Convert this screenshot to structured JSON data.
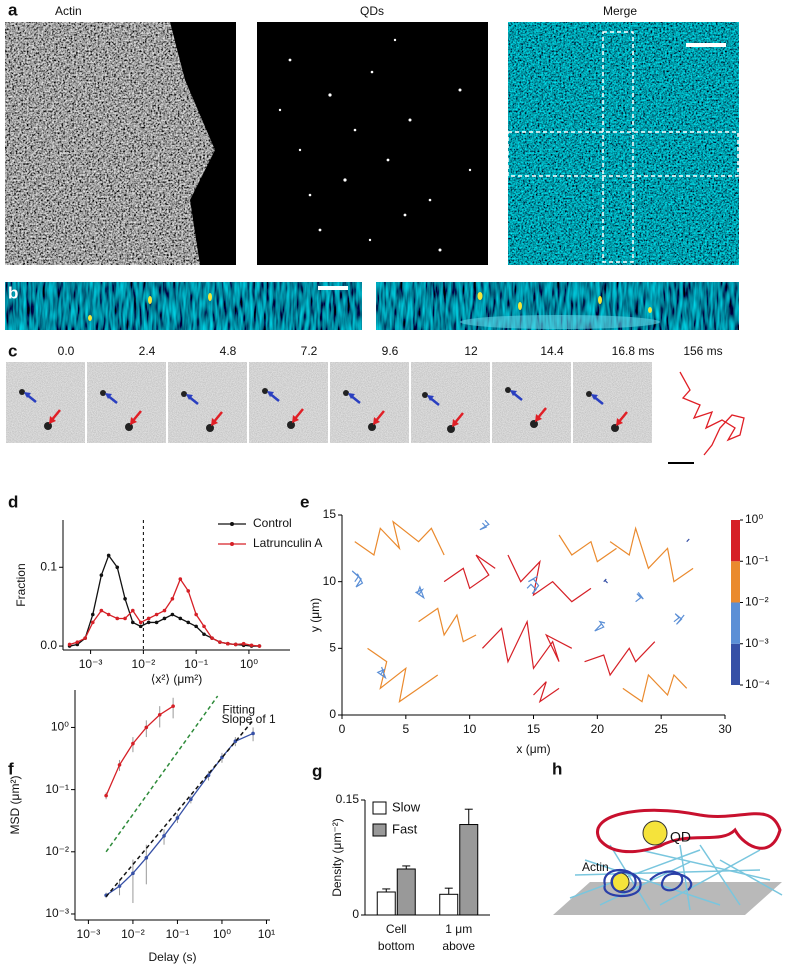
{
  "labels": [
    "a",
    "b",
    "c",
    "d",
    "e",
    "f",
    "g",
    "h"
  ],
  "panel_a": {
    "titles": [
      "Actin",
      "QDs",
      "Merge"
    ]
  },
  "panel_c": {
    "times": [
      "0.0",
      "2.4",
      "4.8",
      "7.2",
      "9.6",
      "12",
      "14.4",
      "16.8 ms"
    ],
    "track_time": "156 ms"
  },
  "panel_h": {
    "labels": [
      "QD",
      "Actin"
    ]
  },
  "chart_data": [
    {
      "type": "line",
      "xscale": "log",
      "xlabel": "⟨x²⟩ (μm²)",
      "ylabel": "Fraction",
      "xlim": [
        0.0003,
        6
      ],
      "ylim": [
        -0.005,
        0.16
      ],
      "xticks": [
        {
          "value": 0.001,
          "label": "10⁻³"
        },
        {
          "value": 0.01,
          "label": "10⁻²"
        },
        {
          "value": 0.1,
          "label": "10⁻¹"
        },
        {
          "value": 1,
          "label": "10⁰"
        }
      ],
      "yticks": [
        {
          "value": 0,
          "label": "0.0"
        },
        0.1
      ],
      "vline": 0.01,
      "legend": "upper right",
      "x": [
        0.0004,
        0.00056,
        0.00079,
        0.0011,
        0.0016,
        0.0022,
        0.0032,
        0.0045,
        0.0063,
        0.0089,
        0.0126,
        0.0178,
        0.0251,
        0.0355,
        0.0501,
        0.0708,
        0.1,
        0.141,
        0.2,
        0.282,
        0.398,
        0.562,
        0.794,
        1.12,
        1.58
      ],
      "series": [
        {
          "name": "Control",
          "color": "#111111",
          "markers": true,
          "values": [
            0,
            0.002,
            0.01,
            0.04,
            0.09,
            0.115,
            0.1,
            0.06,
            0.03,
            0.025,
            0.03,
            0.03,
            0.035,
            0.04,
            0.035,
            0.03,
            0.025,
            0.015,
            0.01,
            0.005,
            0.003,
            0.002,
            0.001,
            0,
            0
          ]
        },
        {
          "name": "Latrunculin A",
          "color": "#d62027",
          "markers": true,
          "values": [
            0.002,
            0.005,
            0.01,
            0.03,
            0.045,
            0.04,
            0.035,
            0.035,
            0.045,
            0.03,
            0.035,
            0.04,
            0.045,
            0.06,
            0.085,
            0.07,
            0.04,
            0.025,
            0.01,
            0.005,
            0.003,
            0.002,
            0.003,
            0.001,
            0
          ]
        }
      ]
    },
    {
      "type": "tracks",
      "xlabel": "x (μm)",
      "ylabel": "y (μm)",
      "xlim": [
        0,
        30
      ],
      "ylim": [
        0,
        15
      ],
      "xticks": [
        0,
        5,
        10,
        15,
        20,
        25,
        30
      ],
      "yticks": [
        0,
        5,
        10,
        15
      ],
      "colorbar": {
        "scale": "log",
        "lim": [
          0.0001,
          1
        ],
        "ticks": [
          {
            "value": 0.0001,
            "label": "10⁻⁴"
          },
          {
            "value": 0.001,
            "label": "10⁻³"
          },
          {
            "value": 0.01,
            "label": "10⁻²"
          },
          {
            "value": 0.1,
            "label": "10⁻¹"
          },
          {
            "value": 1,
            "label": "10⁰"
          }
        ],
        "colors": [
          "#3650a6",
          "#5b8fd6",
          "#ea8a2e",
          "#d62027"
        ]
      },
      "tracks": [
        {
          "color": "#d62027",
          "x": [
            11,
            12.5,
            13,
            14.5,
            15,
            16.5,
            17,
            16,
            18
          ],
          "y": [
            5,
            6.5,
            4,
            7,
            3.5,
            5.5,
            4,
            6,
            5
          ]
        },
        {
          "color": "#d62027",
          "x": [
            13,
            14,
            15.5,
            15,
            16.5,
            18,
            19.5
          ],
          "y": [
            12,
            10,
            11.5,
            9,
            10,
            8.5,
            9.5
          ]
        },
        {
          "color": "#d62027",
          "x": [
            8,
            9.5,
            10,
            11.5,
            10.5,
            12
          ],
          "y": [
            10,
            11,
            9.5,
            10.5,
            12,
            11
          ]
        },
        {
          "color": "#d62027",
          "x": [
            19,
            20.5,
            21,
            22.5,
            23,
            24.5
          ],
          "y": [
            4,
            4.5,
            3,
            5,
            4,
            5.5
          ]
        },
        {
          "color": "#d62027",
          "x": [
            15,
            16,
            15.5,
            17
          ],
          "y": [
            1.5,
            2.5,
            1,
            2
          ]
        },
        {
          "color": "#ea8a2e",
          "x": [
            1,
            2.5,
            3,
            4.5,
            4,
            6,
            7,
            8
          ],
          "y": [
            13,
            12,
            14,
            12.5,
            14.5,
            13,
            14,
            12
          ]
        },
        {
          "color": "#ea8a2e",
          "x": [
            2,
            3.5,
            3,
            5,
            4.5,
            6,
            7.5
          ],
          "y": [
            5,
            4,
            2,
            3.5,
            1,
            2,
            3
          ]
        },
        {
          "color": "#ea8a2e",
          "x": [
            6,
            7.5,
            8,
            9,
            9.5,
            10.5
          ],
          "y": [
            7,
            8,
            6,
            7.5,
            5.5,
            6
          ]
        },
        {
          "color": "#ea8a2e",
          "x": [
            21,
            22.5,
            23,
            24,
            25.5,
            26,
            27.5
          ],
          "y": [
            13,
            12,
            14,
            11,
            12.5,
            10,
            11
          ]
        },
        {
          "color": "#ea8a2e",
          "x": [
            22,
            23.5,
            24,
            25.5,
            26,
            27
          ],
          "y": [
            2,
            1,
            3,
            1.5,
            3,
            2
          ]
        },
        {
          "color": "#ea8a2e",
          "x": [
            17,
            18,
            19.5,
            20,
            21.5
          ],
          "y": [
            13.5,
            12,
            13,
            11.5,
            12.5
          ]
        },
        {
          "color": "#5b8fd6",
          "x": [
            1,
            1.3,
            0.8,
            1.5,
            1.1,
            1.6,
            1.2
          ],
          "y": [
            10,
            10.4,
            10.8,
            10.2,
            9.6,
            9.9,
            10.6
          ]
        },
        {
          "color": "#5b8fd6",
          "x": [
            14.5,
            14.8,
            15.2,
            14.9,
            15.4,
            15,
            14.6,
            15.3
          ],
          "y": [
            9.5,
            9.8,
            9.4,
            9.1,
            9.7,
            10.2,
            10,
            10.4
          ]
        },
        {
          "color": "#5b8fd6",
          "x": [
            26,
            26.4,
            26.1,
            26.6,
            26.2,
            26.8
          ],
          "y": [
            7,
            7.3,
            7.6,
            7.2,
            6.8,
            7.5
          ]
        },
        {
          "color": "#5b8fd6",
          "x": [
            6,
            6.3,
            5.8,
            6.4,
            6.1,
            5.9
          ],
          "y": [
            9,
            9.4,
            9.2,
            8.8,
            9.6,
            9.1
          ]
        },
        {
          "color": "#5b8fd6",
          "x": [
            11,
            11.3,
            10.8,
            11.5,
            11.2
          ],
          "y": [
            14.4,
            14.1,
            13.9,
            14.3,
            14.6
          ]
        },
        {
          "color": "#5b8fd6",
          "x": [
            20,
            20.3,
            19.8,
            20.5,
            20.2,
            20.6
          ],
          "y": [
            6.5,
            6.8,
            6.3,
            6.6,
            7,
            6.9
          ]
        },
        {
          "color": "#5b8fd6",
          "x": [
            3,
            3.3,
            2.8,
            3.4,
            3.1
          ],
          "y": [
            3,
            3.4,
            3.2,
            2.8,
            3.6
          ]
        },
        {
          "color": "#5b8fd6",
          "x": [
            23,
            23.4,
            23.1,
            23.6,
            23.2
          ],
          "y": [
            8.5,
            8.8,
            9.1,
            8.7,
            9.2
          ]
        },
        {
          "color": "#3650a6",
          "x": [
            20.5,
            20.7,
            20.6,
            20.8
          ],
          "y": [
            10,
            10.2,
            10.1,
            9.9
          ]
        },
        {
          "color": "#3650a6",
          "x": [
            27,
            27.2,
            27.1
          ],
          "y": [
            13,
            13.2,
            13.1
          ]
        }
      ]
    },
    {
      "type": "line",
      "xscale": "log",
      "yscale": "log",
      "xlabel": "Delay (s)",
      "ylabel": "MSD (μm²)",
      "xlim": [
        0.0005,
        12
      ],
      "ylim": [
        0.0008,
        4
      ],
      "xticks": [
        {
          "value": 0.001,
          "label": "10⁻³"
        },
        {
          "value": 0.01,
          "label": "10⁻²"
        },
        {
          "value": 0.1,
          "label": "10⁻¹"
        },
        {
          "value": 1,
          "label": "10⁰"
        },
        {
          "value": 10,
          "label": "10¹"
        }
      ],
      "yticks": [
        {
          "value": 0.001,
          "label": "10⁻³"
        },
        {
          "value": 0.01,
          "label": "10⁻²"
        },
        {
          "value": 0.1,
          "label": "10⁻¹"
        },
        {
          "value": 1,
          "label": "10⁰"
        }
      ],
      "series": [
        {
          "color": "#d62027",
          "markers": true,
          "x": [
            0.0025,
            0.005,
            0.01,
            0.02,
            0.04,
            0.08
          ],
          "values": [
            0.08,
            0.25,
            0.55,
            1.0,
            1.6,
            2.2
          ],
          "errors": [
            0.01,
            0.05,
            0.15,
            0.3,
            0.6,
            0.8
          ]
        },
        {
          "color": "#3650a6",
          "markers": true,
          "x": [
            0.0025,
            0.005,
            0.01,
            0.02,
            0.05,
            0.1,
            0.2,
            0.5,
            1,
            2,
            5
          ],
          "values": [
            0.002,
            0.0028,
            0.0045,
            0.008,
            0.018,
            0.035,
            0.07,
            0.17,
            0.33,
            0.6,
            0.8
          ],
          "errors": [
            0.0002,
            0.0008,
            0.003,
            0.005,
            0.005,
            0.006,
            0.01,
            0.03,
            0.06,
            0.1,
            0.2
          ]
        },
        {
          "color": "#2e8b3a",
          "style": "dashed",
          "label": "Slope of 1",
          "x": [
            0.0025,
            0.8
          ],
          "values": [
            0.01,
            3.2
          ]
        },
        {
          "color": "#111111",
          "style": "dashed",
          "label": "Fitting",
          "x": [
            0.0025,
            5
          ],
          "values": [
            0.0019,
            1.3
          ]
        }
      ]
    },
    {
      "type": "bar",
      "ylabel": "Density (μm⁻²)",
      "ylim": [
        0,
        0.15
      ],
      "yticks": [
        0,
        0.15
      ],
      "categories": [
        [
          "Cell",
          "bottom"
        ],
        [
          "1 μm",
          "above"
        ]
      ],
      "series": [
        {
          "name": "Slow",
          "color": "#ffffff",
          "values": [
            0.03,
            0.027
          ],
          "errors": [
            0.004,
            0.008
          ]
        },
        {
          "name": "Fast",
          "color": "#999999",
          "values": [
            0.06,
            0.118
          ],
          "errors": [
            0.004,
            0.02
          ]
        }
      ]
    }
  ]
}
